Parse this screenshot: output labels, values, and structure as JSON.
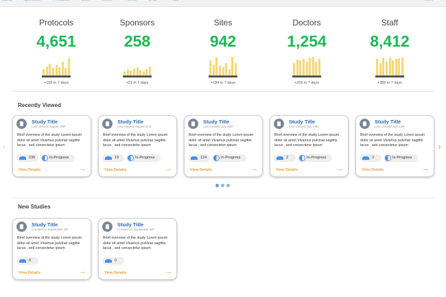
{
  "nav": {
    "items": [
      "Home",
      "Sponsors",
      "Products",
      "Sites",
      "Users",
      "Alerts",
      "Chat",
      "Add"
    ],
    "more": "More"
  },
  "stats": [
    {
      "label": "Protocols",
      "value": "4,651",
      "change": "+158 in 7 days",
      "trend": [
        9,
        13,
        17,
        11,
        15,
        12,
        20,
        11,
        25
      ]
    },
    {
      "label": "Sponsors",
      "value": "258",
      "change": "+21 in 7 days",
      "trend": [
        6,
        9,
        7,
        10,
        12,
        8,
        6,
        9,
        13
      ]
    },
    {
      "label": "Sites",
      "value": "942",
      "change": "+184 in 7 days",
      "trend": [
        22,
        16,
        26,
        14,
        12,
        18,
        9,
        27,
        18
      ]
    },
    {
      "label": "Doctors",
      "value": "1,254",
      "change": "+256 in 7 days",
      "trend": [
        18,
        23,
        22,
        24,
        20,
        26,
        27,
        20,
        24
      ]
    },
    {
      "label": "Staff",
      "value": "8,412",
      "change": "+389 in 7 days",
      "trend": [
        24,
        18,
        26,
        20,
        26,
        22,
        24,
        25,
        26
      ]
    }
  ],
  "recent": {
    "title": "Recently Viewed",
    "cards": [
      {
        "title": "Study Title",
        "date": "Last Viewed August 29th",
        "text": "Brief overview of the study Lorem ipsum dolor sit amet Vivamus pulvinar sagittis lacus , sed consectetur ipsum",
        "count": "235",
        "status": "In-Progress",
        "link": "View Details"
      },
      {
        "title": "Study Title",
        "date": "Last Viewed August 21st",
        "text": "Brief overview of the study Lorem ipsum dolor sit amet Vivamus pulvinar sagittis lacus , sed consectetur ipsum",
        "count": "19",
        "status": "In-Progress",
        "link": "View Details"
      },
      {
        "title": "Study Title",
        "date": "Last Viewed July 30th",
        "text": "Brief overview of the study Lorem ipsum dolor sit amet Vivamus pulvinar sagittis lacus , sed consectetur ipsum",
        "count": "124",
        "status": "In-Progress",
        "link": "View Details"
      },
      {
        "title": "Study Title",
        "date": "Last Viewed July 14th",
        "text": "Brief overview of the study Lorem ipsum dolor sit amet Vivamus pulvinar sagittis lacus , sed consectetur ipsum",
        "count": "2",
        "status": "In-Progress",
        "link": "View Details"
      },
      {
        "title": "Study Title",
        "date": "Last Viewed July 14th",
        "text": "Brief overview of the study Lorem ipsum dolor sit amet Vivamus pulvinar sagittis lacus , sed consectetur ipsum",
        "count": "2",
        "status": "In-Progress",
        "link": "View Details"
      }
    ]
  },
  "new": {
    "title": "New Studies",
    "cards": [
      {
        "title": "Study Title",
        "date": "Created on September 5th",
        "text": "Brief overview of the study Lorem ipsum dolor sit amet Vivamus pulvinar sagittis lacus , sed consectetur ipsum",
        "count": "0",
        "link": "View Details"
      },
      {
        "title": "Study Title",
        "date": "Created on September 5th",
        "text": "Brief overview of the study Lorem ipsum dolor sit amet Vivamus pulvinar sagittis lacus , sed consectetur ipsum",
        "count": "0",
        "link": "View Details"
      }
    ]
  }
}
